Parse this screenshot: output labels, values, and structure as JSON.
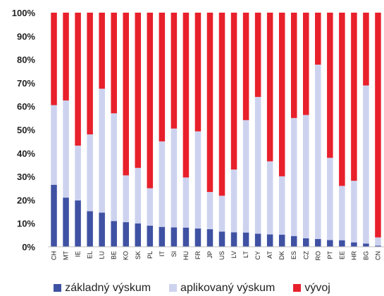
{
  "chart_data": {
    "type": "bar",
    "stacked": true,
    "percent": true,
    "categories": [
      "CH",
      "MT",
      "IE",
      "EL",
      "LU",
      "BE",
      "KO",
      "SK",
      "PL",
      "IT",
      "SI",
      "HU",
      "FR",
      "JP",
      "US",
      "LV",
      "LT",
      "CY",
      "AT",
      "DK",
      "ES",
      "CZ",
      "RO",
      "PT",
      "EE",
      "HR",
      "BG",
      "CN"
    ],
    "series": [
      {
        "name": "základný výskum",
        "color": "#3F51A3",
        "values": [
          26.5,
          21,
          19.8,
          15.2,
          14.6,
          11,
          10.5,
          10,
          9,
          8.5,
          8.3,
          8.2,
          7.8,
          7.5,
          6.5,
          6.2,
          6.1,
          5.6,
          5.3,
          5.2,
          4.6,
          3.6,
          3.3,
          2.9,
          2.8,
          1.9,
          1.4,
          0.5
        ]
      },
      {
        "name": "aplikovaný výskum",
        "color": "#CDD3EF",
        "values": [
          34,
          41.5,
          23.4,
          32.8,
          52.9,
          46,
          20,
          23.7,
          16,
          36.5,
          42.2,
          21.4,
          41.5,
          15.9,
          15.3,
          26.8,
          48,
          58.4,
          31.2,
          24.9,
          50.4,
          52.7,
          74.5,
          35.1,
          23.2,
          26.3,
          67.5,
          3.5
        ]
      },
      {
        "name": "vývoj",
        "color": "#E8202B",
        "values": [
          39.5,
          37.5,
          56.8,
          52,
          32.5,
          43,
          69.5,
          66.3,
          75,
          55,
          49.5,
          70.4,
          50.7,
          76.6,
          78.2,
          67,
          45.9,
          36,
          63.5,
          69.9,
          45,
          43.7,
          22.2,
          62,
          74,
          71.8,
          31.1,
          96
        ]
      }
    ],
    "ylim": [
      0,
      100
    ],
    "yticks": [
      "0%",
      "10%",
      "20%",
      "30%",
      "40%",
      "50%",
      "60%",
      "70%",
      "80%",
      "90%",
      "100%"
    ],
    "grid": false,
    "legend_position": "bottom"
  }
}
